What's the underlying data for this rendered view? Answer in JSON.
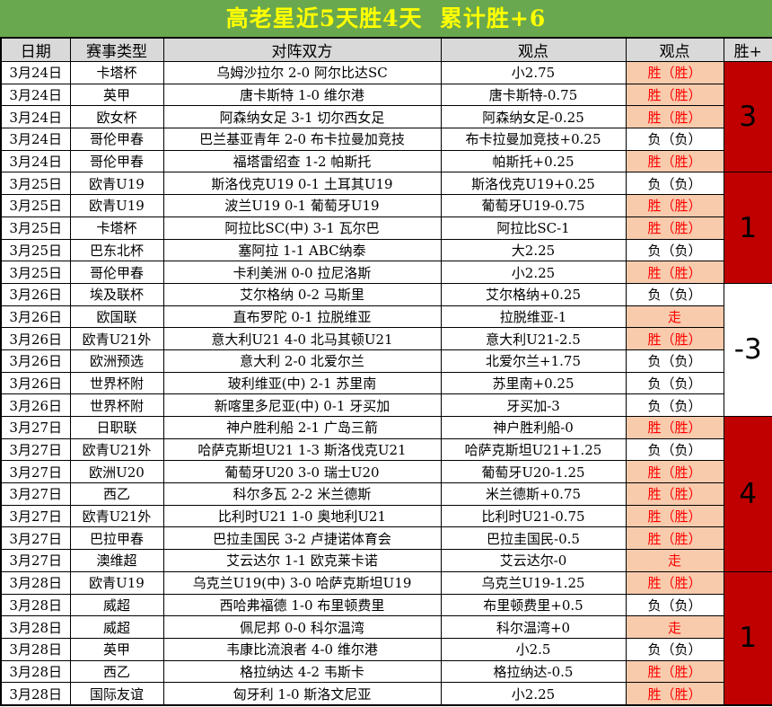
{
  "title": "高老星近5天胜4天  累计胜+6",
  "columns": [
    "日期",
    "赛事类型",
    "对阵双方",
    "观点",
    "观点",
    "胜+"
  ],
  "colors": {
    "banner_green": "#6aa84f",
    "title_yellow": "#ffff00",
    "header_gray": "#d9d9d9",
    "highlight_peach": "#f8cbad",
    "result_red_text": "#ff0000",
    "win_block_dark_red": "#c00000"
  },
  "rows": [
    {
      "date": "3月24日",
      "league": "卡塔杯",
      "match": "乌姆沙拉尔 2-0 阿尔比达SC",
      "pick": "小2.75",
      "result": "胜（胜）",
      "result_type": "win"
    },
    {
      "date": "3月24日",
      "league": "英甲",
      "match": "唐卡斯特 1-0 维尔港",
      "pick": "唐卡斯特-0.75",
      "result": "胜（胜）",
      "result_type": "win"
    },
    {
      "date": "3月24日",
      "league": "欧女杯",
      "match": "阿森纳女足 3-1 切尔西女足",
      "pick": "阿森纳女足-0.25",
      "result": "胜（胜）",
      "result_type": "win"
    },
    {
      "date": "3月24日",
      "league": "哥伦甲春",
      "match": "巴兰基亚青年 2-0 布卡拉曼加竞技",
      "pick": "布卡拉曼加竞技+0.25",
      "result": "负（负）",
      "result_type": "loss"
    },
    {
      "date": "3月24日",
      "league": "哥伦甲春",
      "match": "福塔雷绍查 1-2 帕斯托",
      "pick": "帕斯托+0.25",
      "result": "胜（胜）",
      "result_type": "win"
    },
    {
      "date": "3月25日",
      "league": "欧青U19",
      "match": "斯洛伐克U19 0-1 土耳其U19",
      "pick": "斯洛伐克U19+0.25",
      "result": "负（负）",
      "result_type": "loss"
    },
    {
      "date": "3月25日",
      "league": "欧青U19",
      "match": "波兰U19 0-1 葡萄牙U19",
      "pick": "葡萄牙U19-0.75",
      "result": "胜（胜）",
      "result_type": "win"
    },
    {
      "date": "3月25日",
      "league": "卡塔杯",
      "match": "阿拉比SC(中) 3-1 瓦尔巴",
      "pick": "阿拉比SC-1",
      "result": "胜（胜）",
      "result_type": "win"
    },
    {
      "date": "3月25日",
      "league": "巴东北杯",
      "match": "塞阿拉 1-1 ABC纳泰",
      "pick": "大2.25",
      "result": "负（负）",
      "result_type": "loss"
    },
    {
      "date": "3月25日",
      "league": "哥伦甲春",
      "match": "卡利美洲 0-0 拉尼洛斯",
      "pick": "小2.25",
      "result": "胜（胜）",
      "result_type": "win"
    },
    {
      "date": "3月26日",
      "league": "埃及联杯",
      "match": "艾尔格纳 0-2 马斯里",
      "pick": "艾尔格纳+0.25",
      "result": "负（负）",
      "result_type": "loss"
    },
    {
      "date": "3月26日",
      "league": "欧国联",
      "match": "直布罗陀 0-1 拉脱维亚",
      "pick": "拉脱维亚-1",
      "result": "走",
      "result_type": "push"
    },
    {
      "date": "3月26日",
      "league": "欧青U21外",
      "match": "意大利U21 4-0 北马其顿U21",
      "pick": "意大利U21-2.5",
      "result": "胜（胜）",
      "result_type": "win"
    },
    {
      "date": "3月26日",
      "league": "欧洲预选",
      "match": "意大利 2-0 北爱尔兰",
      "pick": "北爱尔兰+1.75",
      "result": "负（负）",
      "result_type": "loss"
    },
    {
      "date": "3月26日",
      "league": "世界杯附",
      "match": "玻利维亚(中) 2-1 苏里南",
      "pick": "苏里南+0.25",
      "result": "负（负）",
      "result_type": "loss"
    },
    {
      "date": "3月26日",
      "league": "世界杯附",
      "match": "新喀里多尼亚(中) 0-1 牙买加",
      "pick": "牙买加-3",
      "result": "负（负）",
      "result_type": "loss"
    },
    {
      "date": "3月27日",
      "league": "日职联",
      "match": "神户胜利船 2-1 广岛三箭",
      "pick": "神户胜利船-0",
      "result": "胜（胜）",
      "result_type": "win"
    },
    {
      "date": "3月27日",
      "league": "欧青U21外",
      "match": "哈萨克斯坦U21 1-3 斯洛伐克U21",
      "pick": "哈萨克斯坦U21+1.25",
      "result": "负（负）",
      "result_type": "loss"
    },
    {
      "date": "3月27日",
      "league": "欧洲U20",
      "match": "葡萄牙U20 3-0 瑞士U20",
      "pick": "葡萄牙U20-1.25",
      "result": "胜（胜）",
      "result_type": "win"
    },
    {
      "date": "3月27日",
      "league": "西乙",
      "match": "科尔多瓦 2-2 米兰德斯",
      "pick": "米兰德斯+0.75",
      "result": "胜（胜）",
      "result_type": "win"
    },
    {
      "date": "3月27日",
      "league": "欧青U21外",
      "match": "比利时U21 1-0 奥地利U21",
      "pick": "比利时U21-0.75",
      "result": "胜（胜）",
      "result_type": "win"
    },
    {
      "date": "3月27日",
      "league": "巴拉甲春",
      "match": "巴拉圭国民 3-2 卢捷诺体育会",
      "pick": "巴拉圭国民-0.5",
      "result": "胜（胜）",
      "result_type": "win"
    },
    {
      "date": "3月27日",
      "league": "澳维超",
      "match": "艾云达尔 1-1 欧克莱卡诺",
      "pick": "艾云达尔-0",
      "result": "走",
      "result_type": "push"
    },
    {
      "date": "3月28日",
      "league": "欧青U19",
      "match": "乌克兰U19(中) 3-0 哈萨克斯坦U19",
      "pick": "乌克兰U19-1.25",
      "result": "胜（胜）",
      "result_type": "win"
    },
    {
      "date": "3月28日",
      "league": "威超",
      "match": "西哈弗福德 1-0 布里顿费里",
      "pick": "布里顿费里+0.5",
      "result": "负（负）",
      "result_type": "loss"
    },
    {
      "date": "3月28日",
      "league": "威超",
      "match": "佩尼邦 0-0 科尔温湾",
      "pick": "科尔温湾+0",
      "result": "走",
      "result_type": "push"
    },
    {
      "date": "3月28日",
      "league": "英甲",
      "match": "韦康比流浪者 4-0 维尔港",
      "pick": "小2.5",
      "result": "负（负）",
      "result_type": "loss"
    },
    {
      "date": "3月28日",
      "league": "西乙",
      "match": "格拉纳达 4-2 韦斯卡",
      "pick": "格拉纳达-0.5",
      "result": "胜（胜）",
      "result_type": "win"
    },
    {
      "date": "3月28日",
      "league": "国际友谊",
      "match": "匈牙利 1-0 斯洛文尼亚",
      "pick": "小2.25",
      "result": "胜（胜）",
      "result_type": "win"
    }
  ],
  "win_groups": [
    {
      "start": 0,
      "rows": 5,
      "total": "3",
      "highlight": true
    },
    {
      "start": 5,
      "rows": 5,
      "total": "1",
      "highlight": true
    },
    {
      "start": 10,
      "rows": 6,
      "total": "-3",
      "highlight": false
    },
    {
      "start": 16,
      "rows": 7,
      "total": "4",
      "highlight": true
    },
    {
      "start": 23,
      "rows": 6,
      "total": "1",
      "highlight": true
    }
  ]
}
